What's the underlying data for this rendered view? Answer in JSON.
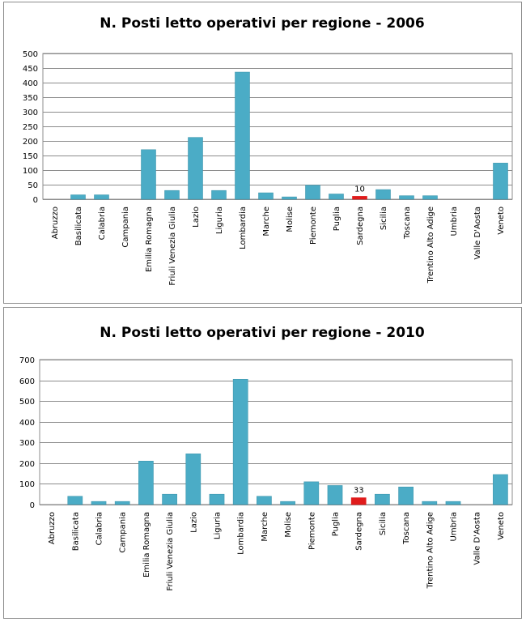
{
  "colors": {
    "bar": "#4bacc6",
    "bar_edge": "#3f97ae",
    "highlight": "#e01b1b",
    "grid": "#8c8c8c",
    "plot_bg": "#ffffff"
  },
  "chart_data": [
    {
      "type": "bar",
      "title": "N. Posti letto operativi per regione - 2006",
      "xlabel": "",
      "ylabel": "",
      "ylim": [
        0,
        500
      ],
      "yticks": [
        0,
        50,
        100,
        150,
        200,
        250,
        300,
        350,
        400,
        450,
        500
      ],
      "grid": true,
      "categories": [
        "Abruzzo",
        "Basilicata",
        "Calabria",
        "Campania",
        "Emilia Romagna",
        "Friuli Venezia Giulia",
        "Lazio",
        "Liguria",
        "Lombardia",
        "Marche",
        "Molise",
        "Piemonte",
        "Puglia",
        "Sardegna",
        "Sicilia",
        "Toscana",
        "Trentino Alto Adige",
        "Umbria",
        "Valle D'Aosta",
        "Veneto"
      ],
      "values": [
        0,
        15,
        15,
        0,
        170,
        30,
        212,
        30,
        436,
        22,
        8,
        48,
        18,
        10,
        33,
        12,
        12,
        0,
        0,
        124
      ],
      "highlight_index": 13,
      "data_labels": [
        {
          "index": 13,
          "text": "10"
        }
      ]
    },
    {
      "type": "bar",
      "title": "N. Posti letto operativi per regione - 2010",
      "xlabel": "",
      "ylabel": "",
      "ylim": [
        0,
        700
      ],
      "yticks": [
        0,
        100,
        200,
        300,
        400,
        500,
        600,
        700
      ],
      "grid": true,
      "categories": [
        "Abruzzo",
        "Basilicata",
        "Calabria",
        "Campania",
        "Emilia Romagna",
        "Friuli Venezia Giulia",
        "Lazio",
        "Liguria",
        "Lombardia",
        "Marche",
        "Molise",
        "Piemonte",
        "Puglia",
        "Sardegna",
        "Sicilia",
        "Toscana",
        "Trentino Alto Adige",
        "Umbria",
        "Valle D'Aosta",
        "Veneto"
      ],
      "values": [
        0,
        40,
        15,
        15,
        210,
        50,
        245,
        50,
        605,
        40,
        15,
        110,
        92,
        33,
        50,
        85,
        15,
        15,
        0,
        145
      ],
      "highlight_index": 13,
      "data_labels": [
        {
          "index": 13,
          "text": "33"
        }
      ]
    }
  ]
}
